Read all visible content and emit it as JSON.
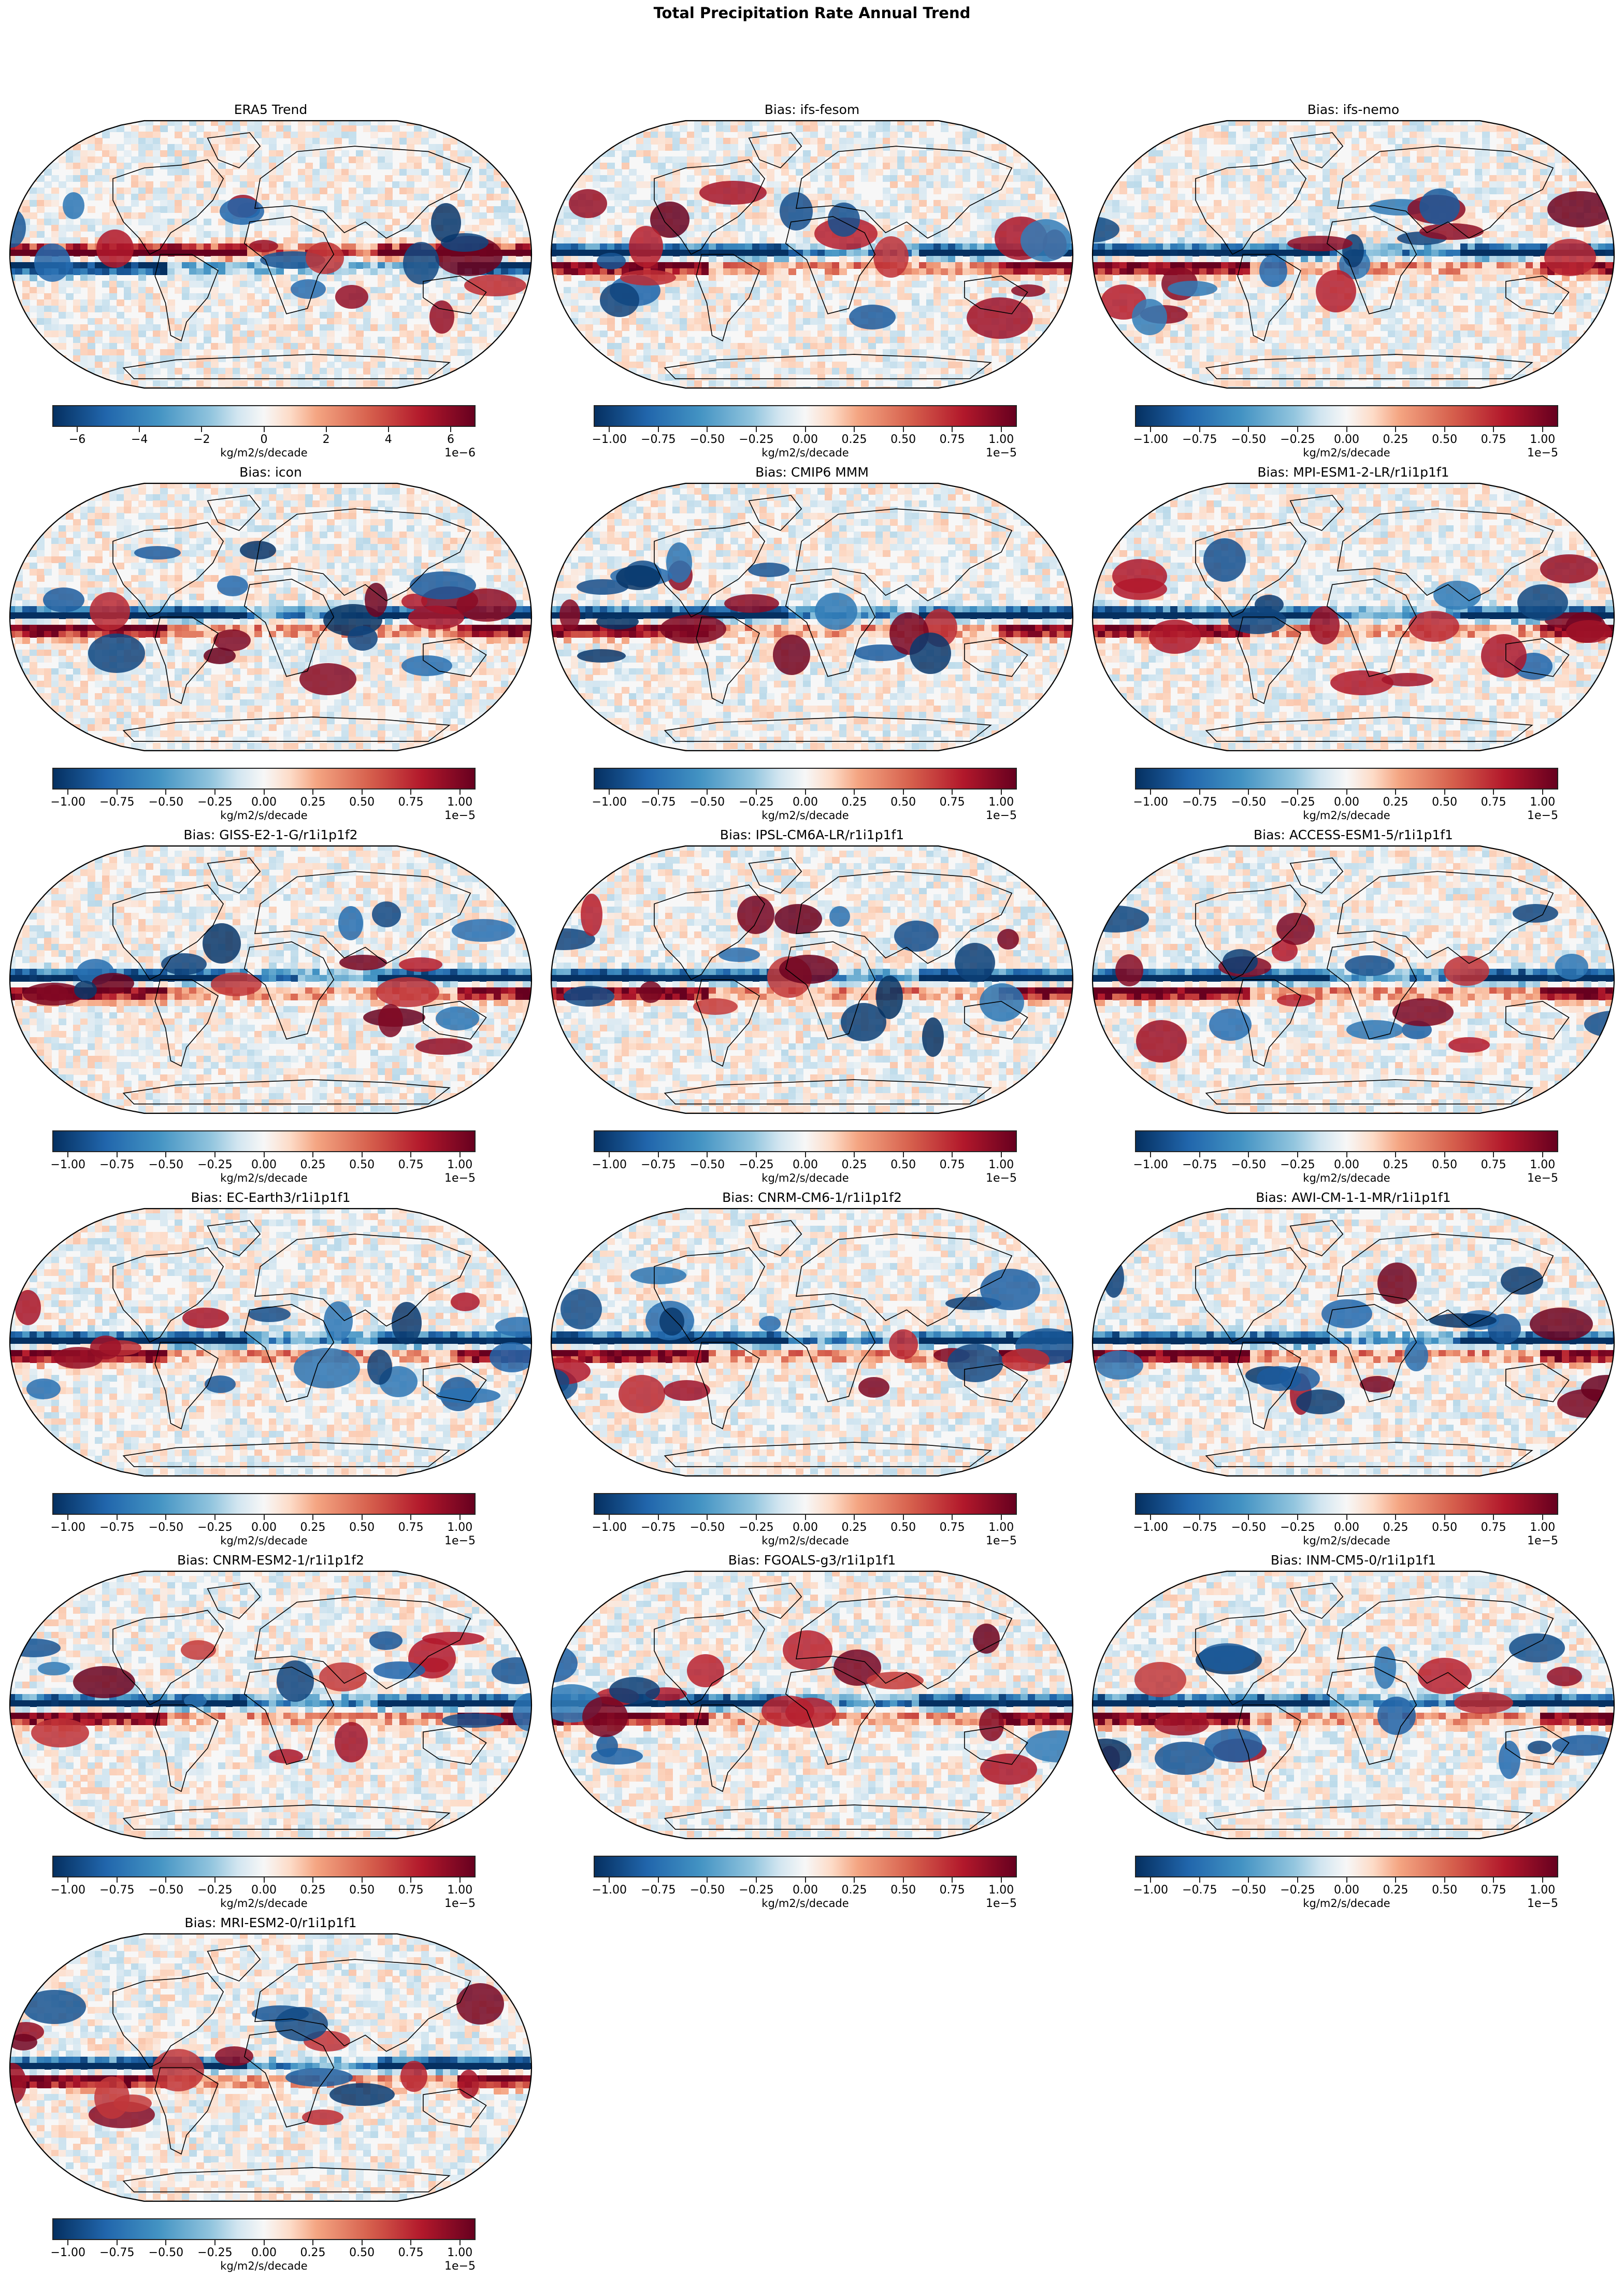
{
  "figure": {
    "title": "Total Precipitation Rate Annual Trend"
  },
  "colors": {
    "cmap": "RdBu_r",
    "cmap_stops": [
      "#053061",
      "#2166ac",
      "#4393c3",
      "#92c5de",
      "#d1e5f0",
      "#f7f7f7",
      "#fddbc7",
      "#f4a582",
      "#d6604d",
      "#b2182b",
      "#67001f"
    ],
    "outline": "#000000",
    "coastline": "#000000"
  },
  "panels": [
    {
      "title": "ERA5 Trend",
      "cbar_unit": "kg/m2/s/decade",
      "cbar_offset": "1e−6",
      "ticks": [
        "−6",
        "−4",
        "−2",
        "0",
        "2",
        "4",
        "6"
      ],
      "tick_values": [
        -6,
        -4,
        -2,
        0,
        2,
        4,
        6
      ],
      "vmin": -6.8,
      "vmax": 6.8
    },
    {
      "title": "Bias: ifs-fesom",
      "cbar_unit": "kg/m2/s/decade",
      "cbar_offset": "1e−5",
      "ticks": [
        "−1.00",
        "−0.75",
        "−0.50",
        "−0.25",
        "0.00",
        "0.25",
        "0.50",
        "0.75",
        "1.00"
      ],
      "tick_values": [
        -1,
        -0.75,
        -0.5,
        -0.25,
        0,
        0.25,
        0.5,
        0.75,
        1
      ],
      "vmin": -1.08,
      "vmax": 1.08
    },
    {
      "title": "Bias: ifs-nemo",
      "cbar_unit": "kg/m2/s/decade",
      "cbar_offset": "1e−5",
      "ticks": [
        "−1.00",
        "−0.75",
        "−0.50",
        "−0.25",
        "0.00",
        "0.25",
        "0.50",
        "0.75",
        "1.00"
      ],
      "tick_values": [
        -1,
        -0.75,
        -0.5,
        -0.25,
        0,
        0.25,
        0.5,
        0.75,
        1
      ],
      "vmin": -1.08,
      "vmax": 1.08
    },
    {
      "title": "Bias: icon",
      "cbar_unit": "kg/m2/s/decade",
      "cbar_offset": "1e−5",
      "ticks": [
        "−1.00",
        "−0.75",
        "−0.50",
        "−0.25",
        "0.00",
        "0.25",
        "0.50",
        "0.75",
        "1.00"
      ],
      "tick_values": [
        -1,
        -0.75,
        -0.5,
        -0.25,
        0,
        0.25,
        0.5,
        0.75,
        1
      ],
      "vmin": -1.08,
      "vmax": 1.08
    },
    {
      "title": "Bias: CMIP6 MMM",
      "cbar_unit": "kg/m2/s/decade",
      "cbar_offset": "1e−5",
      "ticks": [
        "−1.00",
        "−0.75",
        "−0.50",
        "−0.25",
        "0.00",
        "0.25",
        "0.50",
        "0.75",
        "1.00"
      ],
      "tick_values": [
        -1,
        -0.75,
        -0.5,
        -0.25,
        0,
        0.25,
        0.5,
        0.75,
        1
      ],
      "vmin": -1.08,
      "vmax": 1.08
    },
    {
      "title": "Bias: MPI-ESM1-2-LR/r1i1p1f1",
      "cbar_unit": "kg/m2/s/decade",
      "cbar_offset": "1e−5",
      "ticks": [
        "−1.00",
        "−0.75",
        "−0.50",
        "−0.25",
        "0.00",
        "0.25",
        "0.50",
        "0.75",
        "1.00"
      ],
      "tick_values": [
        -1,
        -0.75,
        -0.5,
        -0.25,
        0,
        0.25,
        0.5,
        0.75,
        1
      ],
      "vmin": -1.08,
      "vmax": 1.08
    },
    {
      "title": "Bias: GISS-E2-1-G/r1i1p1f2",
      "cbar_unit": "kg/m2/s/decade",
      "cbar_offset": "1e−5",
      "ticks": [
        "−1.00",
        "−0.75",
        "−0.50",
        "−0.25",
        "0.00",
        "0.25",
        "0.50",
        "0.75",
        "1.00"
      ],
      "tick_values": [
        -1,
        -0.75,
        -0.5,
        -0.25,
        0,
        0.25,
        0.5,
        0.75,
        1
      ],
      "vmin": -1.08,
      "vmax": 1.08
    },
    {
      "title": "Bias: IPSL-CM6A-LR/r1i1p1f1",
      "cbar_unit": "kg/m2/s/decade",
      "cbar_offset": "1e−5",
      "ticks": [
        "−1.00",
        "−0.75",
        "−0.50",
        "−0.25",
        "0.00",
        "0.25",
        "0.50",
        "0.75",
        "1.00"
      ],
      "tick_values": [
        -1,
        -0.75,
        -0.5,
        -0.25,
        0,
        0.25,
        0.5,
        0.75,
        1
      ],
      "vmin": -1.08,
      "vmax": 1.08
    },
    {
      "title": "Bias: ACCESS-ESM1-5/r1i1p1f1",
      "cbar_unit": "kg/m2/s/decade",
      "cbar_offset": "1e−5",
      "ticks": [
        "−1.00",
        "−0.75",
        "−0.50",
        "−0.25",
        "0.00",
        "0.25",
        "0.50",
        "0.75",
        "1.00"
      ],
      "tick_values": [
        -1,
        -0.75,
        -0.5,
        -0.25,
        0,
        0.25,
        0.5,
        0.75,
        1
      ],
      "vmin": -1.08,
      "vmax": 1.08
    },
    {
      "title": "Bias: EC-Earth3/r1i1p1f1",
      "cbar_unit": "kg/m2/s/decade",
      "cbar_offset": "1e−5",
      "ticks": [
        "−1.00",
        "−0.75",
        "−0.50",
        "−0.25",
        "0.00",
        "0.25",
        "0.50",
        "0.75",
        "1.00"
      ],
      "tick_values": [
        -1,
        -0.75,
        -0.5,
        -0.25,
        0,
        0.25,
        0.5,
        0.75,
        1
      ],
      "vmin": -1.08,
      "vmax": 1.08
    },
    {
      "title": "Bias: CNRM-CM6-1/r1i1p1f2",
      "cbar_unit": "kg/m2/s/decade",
      "cbar_offset": "1e−5",
      "ticks": [
        "−1.00",
        "−0.75",
        "−0.50",
        "−0.25",
        "0.00",
        "0.25",
        "0.50",
        "0.75",
        "1.00"
      ],
      "tick_values": [
        -1,
        -0.75,
        -0.5,
        -0.25,
        0,
        0.25,
        0.5,
        0.75,
        1
      ],
      "vmin": -1.08,
      "vmax": 1.08
    },
    {
      "title": "Bias: AWI-CM-1-1-MR/r1i1p1f1",
      "cbar_unit": "kg/m2/s/decade",
      "cbar_offset": "1e−5",
      "ticks": [
        "−1.00",
        "−0.75",
        "−0.50",
        "−0.25",
        "0.00",
        "0.25",
        "0.50",
        "0.75",
        "1.00"
      ],
      "tick_values": [
        -1,
        -0.75,
        -0.5,
        -0.25,
        0,
        0.25,
        0.5,
        0.75,
        1
      ],
      "vmin": -1.08,
      "vmax": 1.08
    },
    {
      "title": "Bias: CNRM-ESM2-1/r1i1p1f2",
      "cbar_unit": "kg/m2/s/decade",
      "cbar_offset": "1e−5",
      "ticks": [
        "−1.00",
        "−0.75",
        "−0.50",
        "−0.25",
        "0.00",
        "0.25",
        "0.50",
        "0.75",
        "1.00"
      ],
      "tick_values": [
        -1,
        -0.75,
        -0.5,
        -0.25,
        0,
        0.25,
        0.5,
        0.75,
        1
      ],
      "vmin": -1.08,
      "vmax": 1.08
    },
    {
      "title": "Bias: FGOALS-g3/r1i1p1f1",
      "cbar_unit": "kg/m2/s/decade",
      "cbar_offset": "1e−5",
      "ticks": [
        "−1.00",
        "−0.75",
        "−0.50",
        "−0.25",
        "0.00",
        "0.25",
        "0.50",
        "0.75",
        "1.00"
      ],
      "tick_values": [
        -1,
        -0.75,
        -0.5,
        -0.25,
        0,
        0.25,
        0.5,
        0.75,
        1
      ],
      "vmin": -1.08,
      "vmax": 1.08
    },
    {
      "title": "Bias: INM-CM5-0/r1i1p1f1",
      "cbar_unit": "kg/m2/s/decade",
      "cbar_offset": "1e−5",
      "ticks": [
        "−1.00",
        "−0.75",
        "−0.50",
        "−0.25",
        "0.00",
        "0.25",
        "0.50",
        "0.75",
        "1.00"
      ],
      "tick_values": [
        -1,
        -0.75,
        -0.5,
        -0.25,
        0,
        0.25,
        0.5,
        0.75,
        1
      ],
      "vmin": -1.08,
      "vmax": 1.08
    },
    {
      "title": "Bias: MRI-ESM2-0/r1i1p1f1",
      "cbar_unit": "kg/m2/s/decade",
      "cbar_offset": "1e−5",
      "ticks": [
        "−1.00",
        "−0.75",
        "−0.50",
        "−0.25",
        "0.00",
        "0.25",
        "0.50",
        "0.75",
        "1.00"
      ],
      "tick_values": [
        -1,
        -0.75,
        -0.5,
        -0.25,
        0,
        0.25,
        0.5,
        0.75,
        1
      ],
      "vmin": -1.08,
      "vmax": 1.08
    }
  ],
  "chart_data": {
    "type": "heatmap",
    "title": "Total Precipitation Rate Annual Trend",
    "projection": "Robinson (global)",
    "layout": {
      "columns": 3,
      "rows": 6,
      "panel_count": 16
    },
    "colormap": "RdBu_r",
    "panels": [
      {
        "title": "ERA5 Trend",
        "colorbar_label": "kg/m2/s/decade",
        "scale": "1e-6",
        "range": [
          -6.8,
          6.8
        ],
        "ticks": [
          -6,
          -4,
          -2,
          0,
          2,
          4,
          6
        ]
      },
      {
        "title": "Bias: ifs-fesom",
        "colorbar_label": "kg/m2/s/decade",
        "scale": "1e-5",
        "range": [
          -1.08,
          1.08
        ],
        "ticks": [
          -1.0,
          -0.75,
          -0.5,
          -0.25,
          0.0,
          0.25,
          0.5,
          0.75,
          1.0
        ]
      },
      {
        "title": "Bias: ifs-nemo",
        "colorbar_label": "kg/m2/s/decade",
        "scale": "1e-5",
        "range": [
          -1.08,
          1.08
        ],
        "ticks": [
          -1.0,
          -0.75,
          -0.5,
          -0.25,
          0.0,
          0.25,
          0.5,
          0.75,
          1.0
        ]
      },
      {
        "title": "Bias: icon",
        "colorbar_label": "kg/m2/s/decade",
        "scale": "1e-5",
        "range": [
          -1.08,
          1.08
        ],
        "ticks": [
          -1.0,
          -0.75,
          -0.5,
          -0.25,
          0.0,
          0.25,
          0.5,
          0.75,
          1.0
        ]
      },
      {
        "title": "Bias: CMIP6 MMM",
        "colorbar_label": "kg/m2/s/decade",
        "scale": "1e-5",
        "range": [
          -1.08,
          1.08
        ],
        "ticks": [
          -1.0,
          -0.75,
          -0.5,
          -0.25,
          0.0,
          0.25,
          0.5,
          0.75,
          1.0
        ]
      },
      {
        "title": "Bias: MPI-ESM1-2-LR/r1i1p1f1",
        "colorbar_label": "kg/m2/s/decade",
        "scale": "1e-5",
        "range": [
          -1.08,
          1.08
        ],
        "ticks": [
          -1.0,
          -0.75,
          -0.5,
          -0.25,
          0.0,
          0.25,
          0.5,
          0.75,
          1.0
        ]
      },
      {
        "title": "Bias: GISS-E2-1-G/r1i1p1f2",
        "colorbar_label": "kg/m2/s/decade",
        "scale": "1e-5",
        "range": [
          -1.08,
          1.08
        ],
        "ticks": [
          -1.0,
          -0.75,
          -0.5,
          -0.25,
          0.0,
          0.25,
          0.5,
          0.75,
          1.0
        ]
      },
      {
        "title": "Bias: IPSL-CM6A-LR/r1i1p1f1",
        "colorbar_label": "kg/m2/s/decade",
        "scale": "1e-5",
        "range": [
          -1.08,
          1.08
        ],
        "ticks": [
          -1.0,
          -0.75,
          -0.5,
          -0.25,
          0.0,
          0.25,
          0.5,
          0.75,
          1.0
        ]
      },
      {
        "title": "Bias: ACCESS-ESM1-5/r1i1p1f1",
        "colorbar_label": "kg/m2/s/decade",
        "scale": "1e-5",
        "range": [
          -1.08,
          1.08
        ],
        "ticks": [
          -1.0,
          -0.75,
          -0.5,
          -0.25,
          0.0,
          0.25,
          0.5,
          0.75,
          1.0
        ]
      },
      {
        "title": "Bias: EC-Earth3/r1i1p1f1",
        "colorbar_label": "kg/m2/s/decade",
        "scale": "1e-5",
        "range": [
          -1.08,
          1.08
        ],
        "ticks": [
          -1.0,
          -0.75,
          -0.5,
          -0.25,
          0.0,
          0.25,
          0.5,
          0.75,
          1.0
        ]
      },
      {
        "title": "Bias: CNRM-CM6-1/r1i1p1f2",
        "colorbar_label": "kg/m2/s/decade",
        "scale": "1e-5",
        "range": [
          -1.08,
          1.08
        ],
        "ticks": [
          -1.0,
          -0.75,
          -0.5,
          -0.25,
          0.0,
          0.25,
          0.5,
          0.75,
          1.0
        ]
      },
      {
        "title": "Bias: AWI-CM-1-1-MR/r1i1p1f1",
        "colorbar_label": "kg/m2/s/decade",
        "scale": "1e-5",
        "range": [
          -1.08,
          1.08
        ],
        "ticks": [
          -1.0,
          -0.75,
          -0.5,
          -0.25,
          0.0,
          0.25,
          0.5,
          0.75,
          1.0
        ]
      },
      {
        "title": "Bias: CNRM-ESM2-1/r1i1p1f2",
        "colorbar_label": "kg/m2/s/decade",
        "scale": "1e-5",
        "range": [
          -1.08,
          1.08
        ],
        "ticks": [
          -1.0,
          -0.75,
          -0.5,
          -0.25,
          0.0,
          0.25,
          0.5,
          0.75,
          1.0
        ]
      },
      {
        "title": "Bias: FGOALS-g3/r1i1p1f1",
        "colorbar_label": "kg/m2/s/decade",
        "scale": "1e-5",
        "range": [
          -1.08,
          1.08
        ],
        "ticks": [
          -1.0,
          -0.75,
          -0.5,
          -0.25,
          0.0,
          0.25,
          0.5,
          0.75,
          1.0
        ]
      },
      {
        "title": "Bias: INM-CM5-0/r1i1p1f1",
        "colorbar_label": "kg/m2/s/decade",
        "scale": "1e-5",
        "range": [
          -1.08,
          1.08
        ],
        "ticks": [
          -1.0,
          -0.75,
          -0.5,
          -0.25,
          0.0,
          0.25,
          0.5,
          0.75,
          1.0
        ]
      },
      {
        "title": "Bias: MRI-ESM2-0/r1i1p1f1",
        "colorbar_label": "kg/m2/s/decade",
        "scale": "1e-5",
        "range": [
          -1.08,
          1.08
        ],
        "ticks": [
          -1.0,
          -0.75,
          -0.5,
          -0.25,
          0.0,
          0.25,
          0.5,
          0.75,
          1.0
        ]
      }
    ]
  }
}
